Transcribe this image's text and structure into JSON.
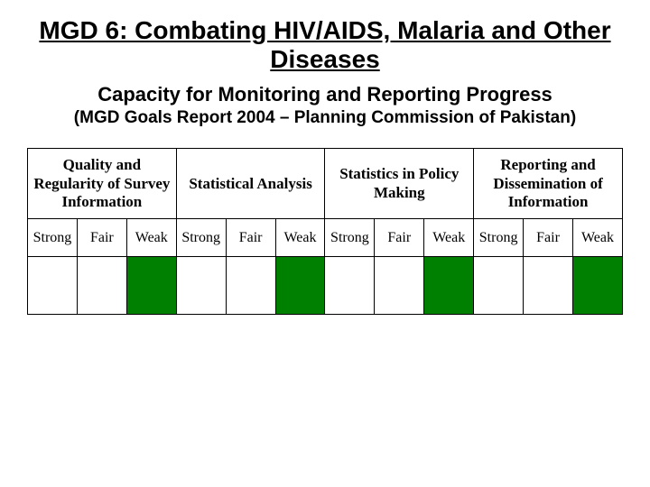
{
  "title": "MGD 6: Combating HIV/AIDS, Malaria and Other Diseases",
  "subtitle": "Capacity for Monitoring and Reporting Progress",
  "subnote": "(MGD Goals Report 2004 – Planning Commission of Pakistan)",
  "table": {
    "type": "table",
    "fill_color": "#008000",
    "border_color": "#000000",
    "background_color": "#ffffff",
    "groups": [
      {
        "label": "Quality and Regularity of Survey Information"
      },
      {
        "label": "Statistical Analysis"
      },
      {
        "label": "Statistics in Policy Making"
      },
      {
        "label": "Reporting and Dissemination of Information"
      }
    ],
    "sub_labels": [
      "Strong",
      "Fair",
      "Weak"
    ],
    "data_row": [
      {
        "filled": false
      },
      {
        "filled": false
      },
      {
        "filled": true
      },
      {
        "filled": false
      },
      {
        "filled": false
      },
      {
        "filled": true
      },
      {
        "filled": false
      },
      {
        "filled": false
      },
      {
        "filled": true
      },
      {
        "filled": false
      },
      {
        "filled": false
      },
      {
        "filled": true
      }
    ]
  }
}
